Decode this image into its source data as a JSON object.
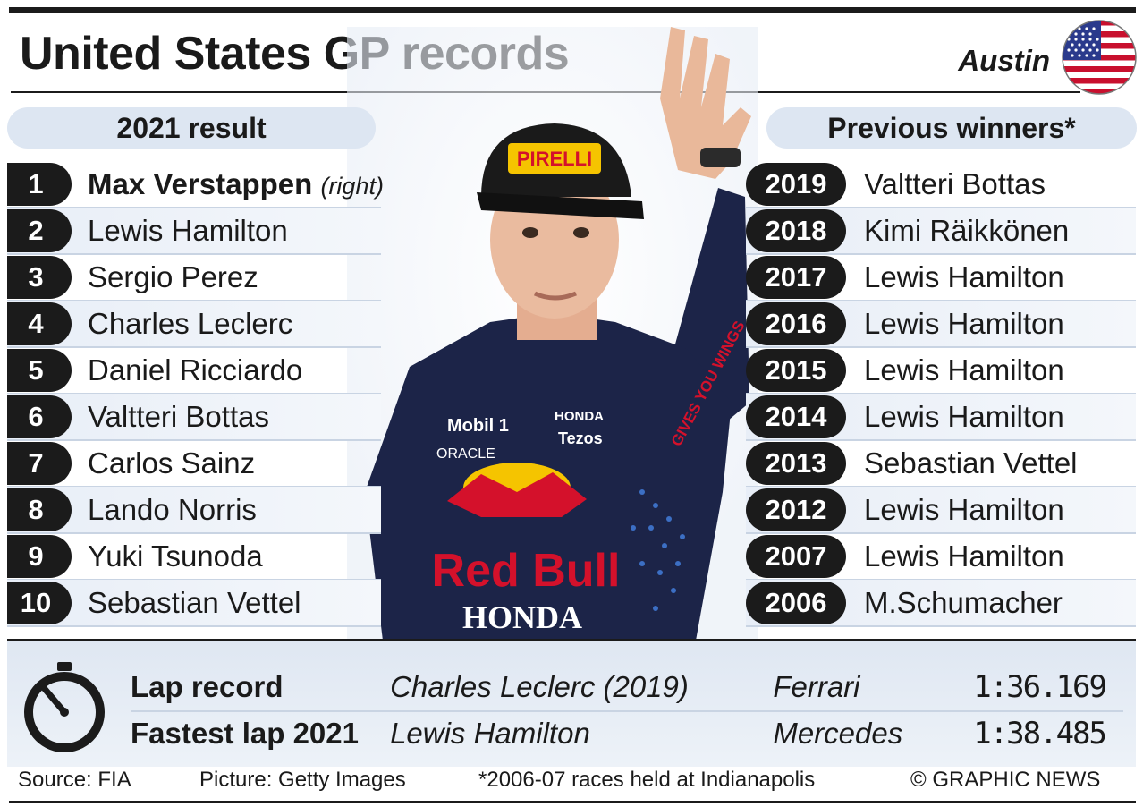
{
  "header": {
    "title": "United States GP records",
    "location": "Austin",
    "flag_icon": "us-flag-icon"
  },
  "result_2021": {
    "heading": "2021 result",
    "rows": [
      {
        "pos": "1",
        "driver": "Max Verstappen",
        "note": "(right)"
      },
      {
        "pos": "2",
        "driver": "Lewis Hamilton"
      },
      {
        "pos": "3",
        "driver": "Sergio Perez"
      },
      {
        "pos": "4",
        "driver": "Charles Leclerc"
      },
      {
        "pos": "5",
        "driver": "Daniel Ricciardo"
      },
      {
        "pos": "6",
        "driver": "Valtteri Bottas"
      },
      {
        "pos": "7",
        "driver": "Carlos Sainz"
      },
      {
        "pos": "8",
        "driver": "Lando Norris"
      },
      {
        "pos": "9",
        "driver": "Yuki Tsunoda"
      },
      {
        "pos": "10",
        "driver": "Sebastian Vettel"
      }
    ]
  },
  "previous_winners": {
    "heading": "Previous winners*",
    "rows": [
      {
        "year": "2019",
        "driver": "Valtteri Bottas"
      },
      {
        "year": "2018",
        "driver": "Kimi Räikkönen"
      },
      {
        "year": "2017",
        "driver": "Lewis Hamilton"
      },
      {
        "year": "2016",
        "driver": "Lewis Hamilton"
      },
      {
        "year": "2015",
        "driver": "Lewis Hamilton"
      },
      {
        "year": "2014",
        "driver": "Lewis Hamilton"
      },
      {
        "year": "2013",
        "driver": "Sebastian Vettel"
      },
      {
        "year": "2012",
        "driver": "Lewis Hamilton"
      },
      {
        "year": "2007",
        "driver": "Lewis Hamilton"
      },
      {
        "year": "2006",
        "driver": "M.Schumacher"
      }
    ]
  },
  "photo": {
    "text_pirelli": "PIRELLI",
    "text_redbull": "Red Bull",
    "text_honda": "HONDA",
    "text_honda_small": "HONDA",
    "text_mobil": "Mobil 1",
    "text_oracle": "ORACLE",
    "text_tezos": "Tezos",
    "text_gives": "GIVES YOU WINGS"
  },
  "laps": [
    {
      "label": "Lap record",
      "driver": "Charles Leclerc (2019)",
      "team": "Ferrari",
      "time": "1:36.169"
    },
    {
      "label": "Fastest lap 2021",
      "driver": "Lewis Hamilton",
      "team": "Mercedes",
      "time": "1:38.485"
    }
  ],
  "footer": {
    "source": "Source: FIA",
    "picture": "Picture: Getty Images",
    "note": "*2006-07 races held at Indianapolis",
    "copyright": "© GRAPHIC NEWS"
  },
  "colors": {
    "dark": "#1b1b1b",
    "panel": "#dde6f2",
    "flag_red": "#c8102e",
    "flag_blue": "#2a3a8c",
    "redbull_navy": "#1c2448",
    "redbull_red": "#d4112b",
    "redbull_yellow": "#f5c400"
  }
}
